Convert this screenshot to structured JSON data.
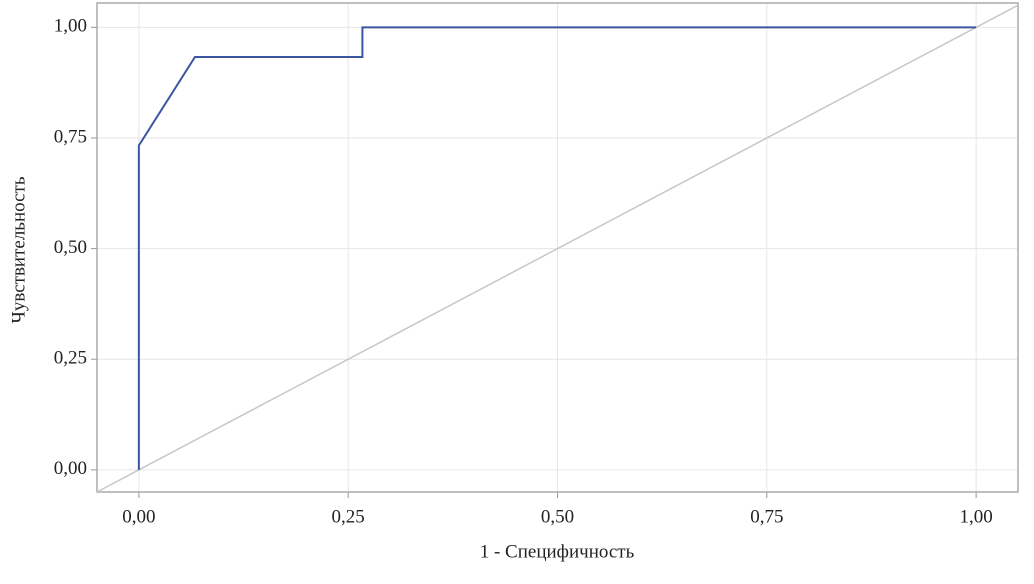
{
  "chart_data": {
    "type": "line",
    "x_label": "1 - Специфичность",
    "y_label": "Чувствительность",
    "x": [
      0,
      0,
      0.067,
      0.267,
      0.267,
      1
    ],
    "values": [
      0,
      0.733,
      0.933,
      0.933,
      1,
      1
    ],
    "color": "#3b55a3",
    "diagonal": true,
    "diagonal_color": "#c8c8c8",
    "grid": true,
    "xlim": [
      -0.05,
      1.05
    ],
    "ylim": [
      -0.05,
      1.055
    ],
    "xticks": [
      {
        "value": 0,
        "label": "0,00"
      },
      {
        "value": 0.25,
        "label": "0,25"
      },
      {
        "value": 0.5,
        "label": "0,50"
      },
      {
        "value": 0.75,
        "label": "0,75"
      },
      {
        "value": 1,
        "label": "1,00"
      }
    ],
    "yticks": [
      {
        "value": 0,
        "label": "0,00"
      },
      {
        "value": 0.25,
        "label": "0,25"
      },
      {
        "value": 0.5,
        "label": "0,50"
      },
      {
        "value": 0.75,
        "label": "0,75"
      },
      {
        "value": 1,
        "label": "1,00"
      }
    ]
  }
}
